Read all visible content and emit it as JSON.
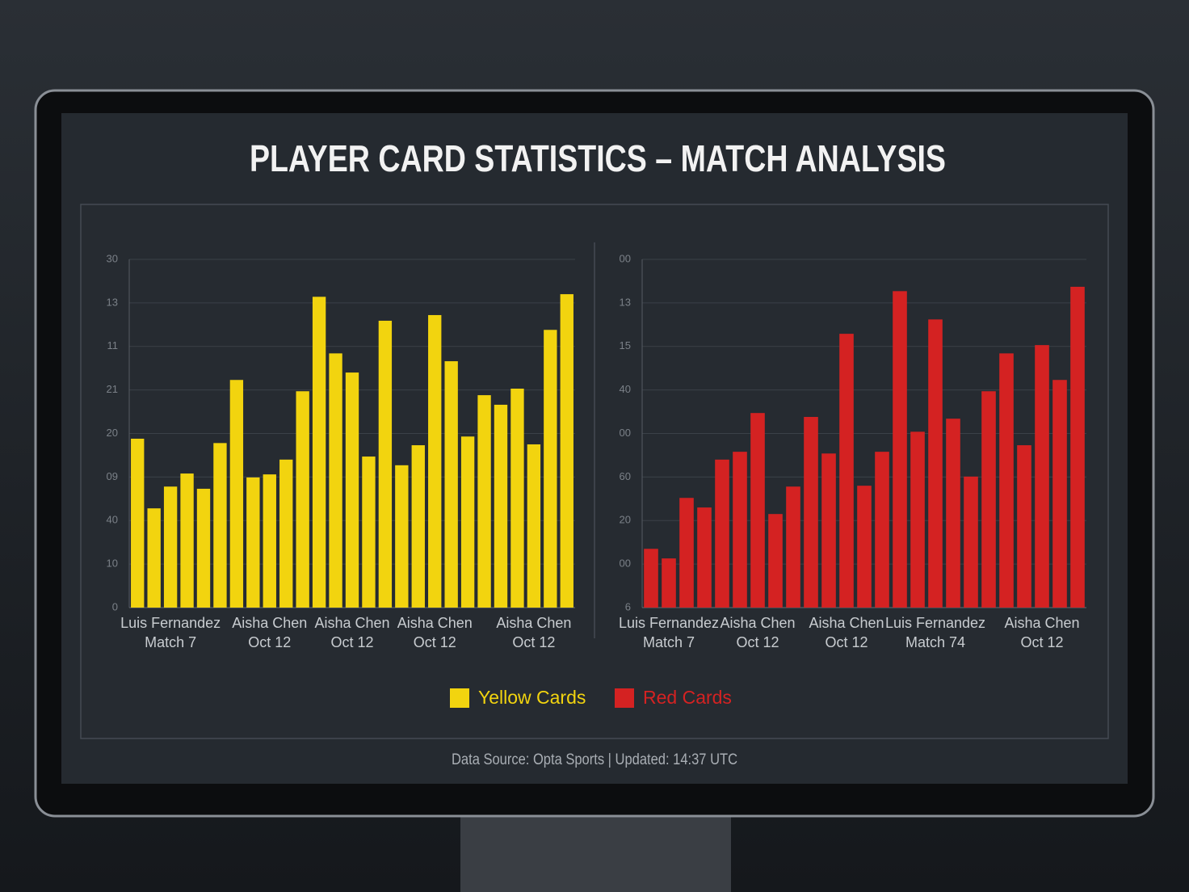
{
  "title": "PLAYER CARD STATISTICS – MATCH ANALYSIS",
  "footer": "Data Source: Opta Sports | Updated: 14:37 UTC",
  "chart_data": [
    {
      "type": "bar",
      "categories": [
        null,
        null,
        "Luis Fernandez\nMatch 7",
        null,
        null,
        null,
        null,
        null,
        "Aisha Chen\nOct 12",
        null,
        null,
        null,
        null,
        "Aisha Chen\nOct 12",
        null,
        null,
        null,
        null,
        "Aisha Chen\nOct 12",
        null,
        null,
        null,
        null,
        null,
        "Aisha Chen\nOct 12",
        null,
        null
      ],
      "series": [
        {
          "name": "Yellow Cards",
          "color": "#f2d40f",
          "values": [
            3.88,
            2.28,
            2.78,
            3.08,
            2.73,
            3.78,
            5.23,
            2.99,
            3.06,
            3.4,
            4.97,
            7.14,
            5.84,
            5.4,
            3.47,
            6.59,
            3.27,
            3.73,
            6.72,
            5.66,
            3.93,
            4.88,
            4.66,
            5.03,
            3.75,
            6.38,
            7.2
          ]
        }
      ],
      "ylim": [
        0,
        8
      ],
      "yticks": [
        {
          "value": 0,
          "label": "0"
        },
        {
          "value": 1,
          "label": "10"
        },
        {
          "value": 2,
          "label": "40"
        },
        {
          "value": 3,
          "label": "09"
        },
        {
          "value": 4,
          "label": "20"
        },
        {
          "value": 5,
          "label": "21"
        },
        {
          "value": 6,
          "label": "11"
        },
        {
          "value": 7,
          "label": "13"
        },
        {
          "value": 8,
          "label": "30"
        }
      ],
      "grid": true
    },
    {
      "type": "bar",
      "categories": [
        null,
        "Luis Fernandez\nMatch 7",
        null,
        null,
        null,
        null,
        "Aisha Chen\nOct 12",
        null,
        null,
        null,
        null,
        "Aisha Chen\nOct 12",
        null,
        null,
        null,
        null,
        "Luis Fernandez\nMatch 74",
        null,
        null,
        null,
        null,
        null,
        "Aisha Chen\nOct 12",
        null,
        null
      ],
      "series": [
        {
          "name": "Red Cards",
          "color": "#d42222",
          "values": [
            1.35,
            1.13,
            2.52,
            2.3,
            3.4,
            3.58,
            4.47,
            2.15,
            2.78,
            4.38,
            3.54,
            6.29,
            2.8,
            3.58,
            7.27,
            4.04,
            6.62,
            4.34,
            3.01,
            4.97,
            5.84,
            3.73,
            6.03,
            5.23,
            7.37
          ]
        }
      ],
      "ylim": [
        0,
        8
      ],
      "yticks": [
        {
          "value": 0,
          "label": "6"
        },
        {
          "value": 1,
          "label": "00"
        },
        {
          "value": 2,
          "label": "20"
        },
        {
          "value": 3,
          "label": "60"
        },
        {
          "value": 4,
          "label": "00"
        },
        {
          "value": 5,
          "label": "40"
        },
        {
          "value": 6,
          "label": "15"
        },
        {
          "value": 7,
          "label": "13"
        },
        {
          "value": 8,
          "label": "00"
        }
      ],
      "grid": true
    }
  ]
}
